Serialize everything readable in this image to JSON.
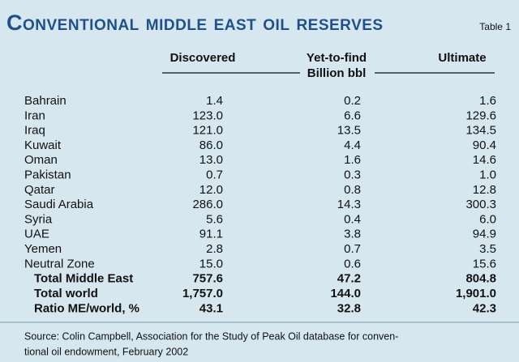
{
  "header": {
    "title": "Conventional middle east oil reserves",
    "label": "Table 1"
  },
  "table": {
    "columns": [
      "Discovered",
      "Yet-to-find",
      "Ultimate"
    ],
    "unit": "Billion bbl",
    "rows": [
      [
        "Bahrain",
        "1.4",
        "0.2",
        "1.6"
      ],
      [
        "Iran",
        "123.0",
        "6.6",
        "129.6"
      ],
      [
        "Iraq",
        "121.0",
        "13.5",
        "134.5"
      ],
      [
        "Kuwait",
        "86.0",
        "4.4",
        "90.4"
      ],
      [
        "Oman",
        "13.0",
        "1.6",
        "14.6"
      ],
      [
        "Pakistan",
        "0.7",
        "0.3",
        "1.0"
      ],
      [
        "Qatar",
        "12.0",
        "0.8",
        "12.8"
      ],
      [
        "Saudi Arabia",
        "286.0",
        "14.3",
        "300.3"
      ],
      [
        "Syria",
        "5.6",
        "0.4",
        "6.0"
      ],
      [
        "UAE",
        "91.1",
        "3.8",
        "94.9"
      ],
      [
        "Yemen",
        "2.8",
        "0.7",
        "3.5"
      ],
      [
        "Neutral Zone",
        "15.0",
        "0.6",
        "15.6"
      ]
    ],
    "totals": [
      [
        "Total Middle East",
        "757.6",
        "47.2",
        "804.8"
      ],
      [
        "Total world",
        "1,757.0",
        "144.0",
        "1,901.0"
      ],
      [
        "Ratio ME/world, %",
        "43.1",
        "32.8",
        "42.3"
      ]
    ]
  },
  "source": [
    "Source: Colin Campbell, Association for the Study of Peak Oil database for conven-",
    "tional oil endowment, February 2002"
  ]
}
